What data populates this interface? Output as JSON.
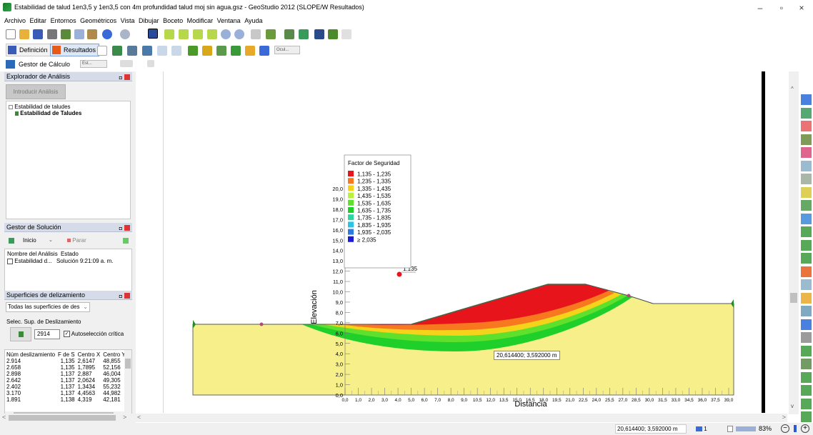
{
  "window": {
    "title": "Estabilidad de talud 1en3,5 y 1en3,5 con 4m profundidad talud moj sin agua.gsz - GeoStudio 2012 (SLOPE/W Resultados)",
    "minimize": "–",
    "maximize": "▫",
    "close": "×"
  },
  "menu": [
    "Archivo",
    "Editar",
    "Entornos",
    "Geométricos",
    "Vista",
    "Dibujar",
    "Boceto",
    "Modificar",
    "Ventana",
    "Ayuda"
  ],
  "toolbar2": {
    "definicion": "Definición",
    "resultados": "Resultados",
    "combo": "Ocul..."
  },
  "toolbar3": {
    "gestor": "Gestor de Cálculo",
    "combo": "Est..."
  },
  "explorer": {
    "header": "Explorador de Análisis",
    "intro_button": "Introducir Análisis",
    "tree_parent": "Estabilidad de taludes",
    "tree_child": "Estabilidad de Taludes"
  },
  "solution": {
    "header": "Gestor de Solución",
    "start": "Inicio",
    "stop": "Parar",
    "col_name": "Nombre del Análisis",
    "col_state": "Estado",
    "row_name": "Estabilidad d...",
    "row_state": "Solución 9:21:09 a. m."
  },
  "surfaces": {
    "header": "Superficies de delizamiento",
    "dropdown": "Todas las superficies de des",
    "select_label": "Selec. Sup. de Deslizamiento",
    "select_value": "2914",
    "auto_label": "Autoselección crítica",
    "columns": [
      "Núm deslizamiento",
      "F de S",
      "Centro X",
      "Centro Y"
    ],
    "rows": [
      [
        "2.914",
        "1,135",
        "2,6147",
        "48,855"
      ],
      [
        "2.658",
        "1,135",
        "1,7895",
        "52,156"
      ],
      [
        "2.898",
        "1,137",
        "2,887",
        "46,004"
      ],
      [
        "2.642",
        "1,137",
        "2,0624",
        "49,305"
      ],
      [
        "2.402",
        "1,137",
        "1,3434",
        "55,232"
      ],
      [
        "3.170",
        "1,137",
        "4,4563",
        "44,982"
      ],
      [
        "1.891",
        "1,138",
        "4,319",
        "42,181"
      ]
    ]
  },
  "legend": {
    "title": "Factor de Seguridad",
    "items": [
      {
        "label": "1,135 - 1,235",
        "color": "#e8141c"
      },
      {
        "label": "1,235 - 1,335",
        "color": "#f7781e"
      },
      {
        "label": "1,335 - 1,435",
        "color": "#f5d31a"
      },
      {
        "label": "1,435 - 1,535",
        "color": "#b9f23a"
      },
      {
        "label": "1,535 - 1,635",
        "color": "#5fe02c"
      },
      {
        "label": "1,635 - 1,735",
        "color": "#1fd02a"
      },
      {
        "label": "1,735 - 1,835",
        "color": "#2ad7a2"
      },
      {
        "label": "1,835 - 1,935",
        "color": "#2ac2e6"
      },
      {
        "label": "1,935 - 2,035",
        "color": "#2a7ae6"
      },
      {
        "label": "≥ 2,035",
        "color": "#1a1ad8"
      }
    ]
  },
  "plot": {
    "y_axis_label": "Elevación",
    "x_axis_label": "Distancia",
    "y_ticks": [
      "20,0",
      "19,0",
      "18,0",
      "17,0",
      "16,0",
      "15,0",
      "14,0",
      "13,0",
      "12,0",
      "11,0",
      "10,0",
      "9,0",
      "8,0",
      "7,0",
      "6,0",
      "5,0",
      "4,0",
      "3,0",
      "2,0",
      "1,0",
      "0,0"
    ],
    "x_ticks": [
      "0,0",
      "1,0",
      "2,0",
      "3,0",
      "4,0",
      "5,0",
      "6,0",
      "7,0",
      "8,0",
      "9,0",
      "10,5",
      "12,0",
      "13,5",
      "15,0",
      "16,5",
      "18,0",
      "19,5",
      "21,0",
      "22,5",
      "24,0",
      "25,5",
      "27,0",
      "28,5",
      "30,0",
      "31,5",
      "33,0",
      "34,5",
      "36,0",
      "37,5",
      "39,0"
    ],
    "center_label": "1.135",
    "coord_tooltip": "20,614400; 3,592000 m",
    "soil_color": "#f7f08a"
  },
  "status": {
    "coords": "20,614400; 3,592000 m",
    "page": "1",
    "zoom": "83%"
  }
}
